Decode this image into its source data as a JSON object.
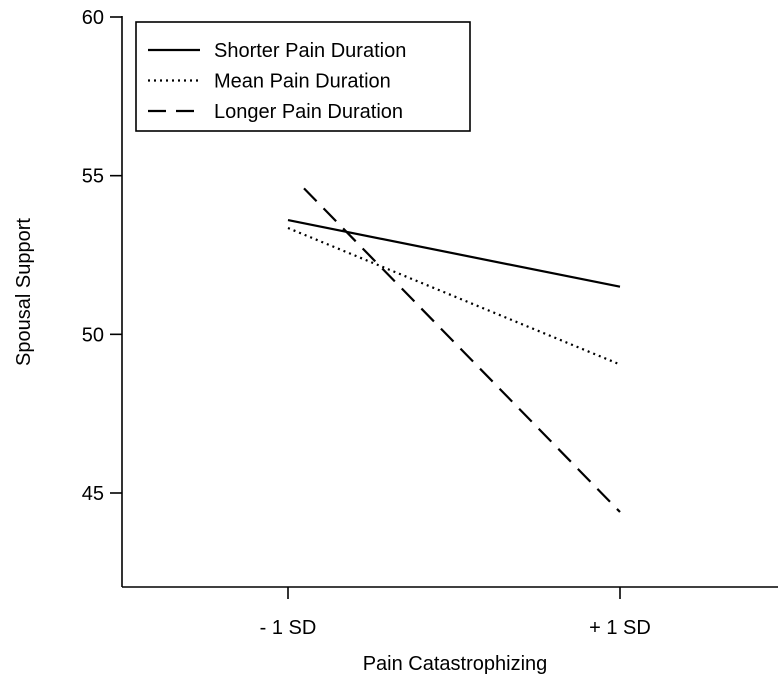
{
  "chart_data": {
    "type": "line",
    "title": "",
    "xlabel": "Pain Catastrophizing",
    "ylabel": "Spousal Support",
    "categories": [
      "- 1 SD",
      "+ 1 SD"
    ],
    "ylim": [
      45,
      60
    ],
    "yticks": [
      45,
      50,
      55,
      60
    ],
    "grid": false,
    "legend_position": "top-left",
    "series": [
      {
        "name": "Shorter Pain Duration",
        "style": "solid",
        "values": [
          53.6,
          51.5
        ]
      },
      {
        "name": "Mean Pain Duration",
        "style": "dotted",
        "values": [
          53.35,
          49.05
        ]
      },
      {
        "name": "Longer Pain Duration",
        "style": "dashed",
        "values": [
          54.6,
          44.4
        ]
      }
    ],
    "colors": {
      "lines": "#000000",
      "background": "#ffffff"
    }
  }
}
